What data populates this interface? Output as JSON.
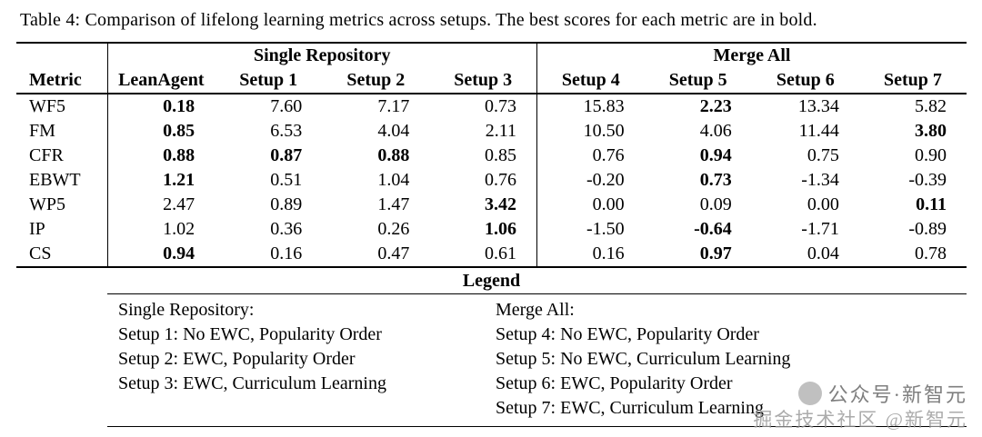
{
  "caption": "Table 4: Comparison of lifelong learning metrics across setups. The best scores for each metric are in bold.",
  "chart_data": {
    "type": "table",
    "title": "Comparison of lifelong learning metrics across setups",
    "group_headers": [
      {
        "label": "",
        "span": 1
      },
      {
        "label": "Single Repository",
        "span": 4
      },
      {
        "label": "Merge All",
        "span": 4
      }
    ],
    "columns": [
      "Metric",
      "LeanAgent",
      "Setup 1",
      "Setup 2",
      "Setup 3",
      "Setup 4",
      "Setup 5",
      "Setup 6",
      "Setup 7"
    ],
    "rows": [
      {
        "metric": "WF5",
        "values": [
          "0.18",
          "7.60",
          "7.17",
          "0.73",
          "15.83",
          "2.23",
          "13.34",
          "5.82"
        ],
        "bold": [
          0,
          5
        ]
      },
      {
        "metric": "FM",
        "values": [
          "0.85",
          "6.53",
          "4.04",
          "2.11",
          "10.50",
          "4.06",
          "11.44",
          "3.80"
        ],
        "bold": [
          0,
          7
        ]
      },
      {
        "metric": "CFR",
        "values": [
          "0.88",
          "0.87",
          "0.88",
          "0.85",
          "0.76",
          "0.94",
          "0.75",
          "0.90"
        ],
        "bold": [
          0,
          1,
          2,
          5
        ]
      },
      {
        "metric": "EBWT",
        "values": [
          "1.21",
          "0.51",
          "1.04",
          "0.76",
          "-0.20",
          "0.73",
          "-1.34",
          "-0.39"
        ],
        "bold": [
          0,
          5
        ]
      },
      {
        "metric": "WP5",
        "values": [
          "2.47",
          "0.89",
          "1.47",
          "3.42",
          "0.00",
          "0.09",
          "0.00",
          "0.11"
        ],
        "bold": [
          3,
          7
        ]
      },
      {
        "metric": "IP",
        "values": [
          "1.02",
          "0.36",
          "0.26",
          "1.06",
          "-1.50",
          "-0.64",
          "-1.71",
          "-0.89"
        ],
        "bold": [
          3,
          5
        ]
      },
      {
        "metric": "CS",
        "values": [
          "0.94",
          "0.16",
          "0.47",
          "0.61",
          "0.16",
          "0.97",
          "0.04",
          "0.78"
        ],
        "bold": [
          0,
          5
        ]
      }
    ]
  },
  "legend": {
    "title": "Legend",
    "left": {
      "header": "Single Repository:",
      "items": [
        "Setup 1: No EWC, Popularity Order",
        "Setup 2: EWC, Popularity Order",
        "Setup 3: EWC, Curriculum Learning"
      ]
    },
    "right": {
      "header": "Merge All:",
      "items": [
        "Setup 4: No EWC, Popularity Order",
        "Setup 5: No EWC, Curriculum Learning",
        "Setup 6: EWC, Popularity Order",
        "Setup 7: EWC, Curriculum Learning"
      ]
    }
  },
  "watermark": {
    "line1": "公众号·新智元",
    "line2": "掘金技术社区 @新智元"
  }
}
